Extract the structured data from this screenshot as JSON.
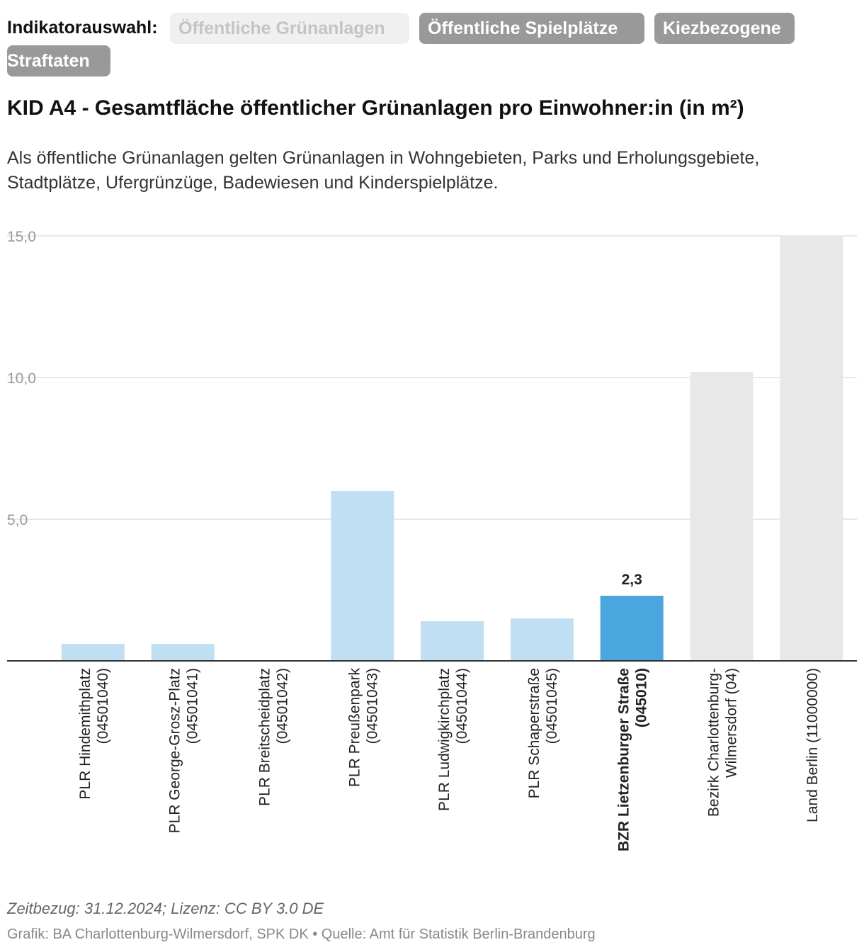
{
  "selector": {
    "label": "Indikatorauswahl:",
    "tabs": [
      {
        "label": "Öffentliche Grünanlagen",
        "active": true
      },
      {
        "label": "Öffentliche Spielplätze",
        "active": false
      },
      {
        "label": "Kiezbezogene Straftaten",
        "active": false
      }
    ],
    "tab_2_part1": "Kiezbezogene",
    "tab_2_part2": "Straftaten"
  },
  "title": "KID A4 - Gesamtfläche öffentlicher Grünanlagen pro Einwohner:in (in m²)",
  "description": "Als öffentliche Grünanlagen gelten Grünanlagen in Wohngebieten, Parks und Erholungsgebiete, Stadtplätze, Ufergrünzüge, Badewiesen und Kinderspielplätze.",
  "colors": {
    "plr": "#c1dff2",
    "bzr": "#4ba6df",
    "reference": "#e8e8e8",
    "grid": "#e0e0e0",
    "axis": "#333333"
  },
  "chart_data": {
    "type": "bar",
    "title": "KID A4 - Gesamtfläche öffentlicher Grünanlagen pro Einwohner:in (in m²)",
    "ylim": [
      0,
      15
    ],
    "yticks": [
      5,
      10,
      15
    ],
    "ytick_labels": [
      "5,0",
      "10,0",
      "15,0"
    ],
    "categories": [
      [
        "PLR Hindemithplatz",
        "(04501040)"
      ],
      [
        "PLR George-Grosz-Platz",
        "(04501041)"
      ],
      [
        "PLR Breitscheidplatz",
        "(04501042)"
      ],
      [
        "PLR Preußenpark",
        "(04501043)"
      ],
      [
        "PLR Ludwigkirchplatz",
        "(04501044)"
      ],
      [
        "PLR Schaperstraße",
        "(04501045)"
      ],
      [
        "BZR Lietzenburger Straße",
        "(045010)"
      ],
      [
        "Bezirk Charlottenburg-",
        "Wilmersdorf (04)"
      ],
      [
        "Land Berlin (11000000)"
      ]
    ],
    "values": [
      0.6,
      0.6,
      0,
      6.0,
      1.4,
      1.5,
      2.3,
      10.2,
      15.0
    ],
    "kinds": [
      "plr",
      "plr",
      "plr",
      "plr",
      "plr",
      "plr",
      "bzr",
      "reference",
      "reference"
    ],
    "highlight_index": 6,
    "data_labels": [
      "",
      "",
      "",
      "",
      "",
      "",
      "2,3",
      "",
      ""
    ]
  },
  "footer": {
    "note": "Zeitbezug: 31.12.2024; Lizenz: CC BY 3.0 DE",
    "credit": "Grafik: BA Charlottenburg-Wilmersdorf, SPK DK • Quelle: Amt für Statistik Berlin-Brandenburg"
  }
}
